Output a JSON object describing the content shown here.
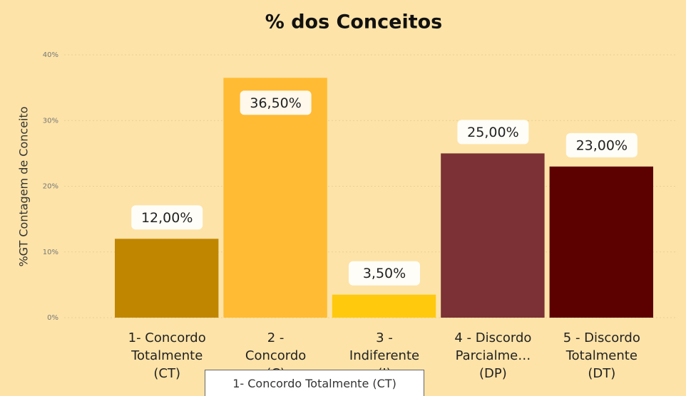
{
  "chart_data": {
    "type": "bar",
    "title": "% dos Conceitos",
    "y_label": "%GT Contagem de Conceito",
    "categories": [
      "1- Concordo\nTotalmente\n(CT)",
      "2 -\nConcordo\n(C)",
      "3 -\nIndiferente\n(I)",
      "4 - Discordo\nParcialme…\n(DP)",
      "5 - Discordo\nTotalmente\n(DT)"
    ],
    "values": [
      12,
      36.5,
      3.5,
      25,
      23
    ],
    "value_labels": [
      "12,00%",
      "36,50%",
      "3,50%",
      "25,00%",
      "23,00%"
    ],
    "colors": [
      "#c08600",
      "#ffbb33",
      "#ffc90e",
      "#7b3135",
      "#5c0000"
    ],
    "ylim": [
      0,
      40
    ],
    "yticks": [
      {
        "value": 0,
        "label": "0%"
      },
      {
        "value": 10,
        "label": "10%"
      },
      {
        "value": 20,
        "label": "20%"
      },
      {
        "value": 30,
        "label": "30%"
      },
      {
        "value": 40,
        "label": "40%"
      }
    ],
    "grid": true,
    "tooltip": "1- Concordo Totalmente (CT)"
  }
}
